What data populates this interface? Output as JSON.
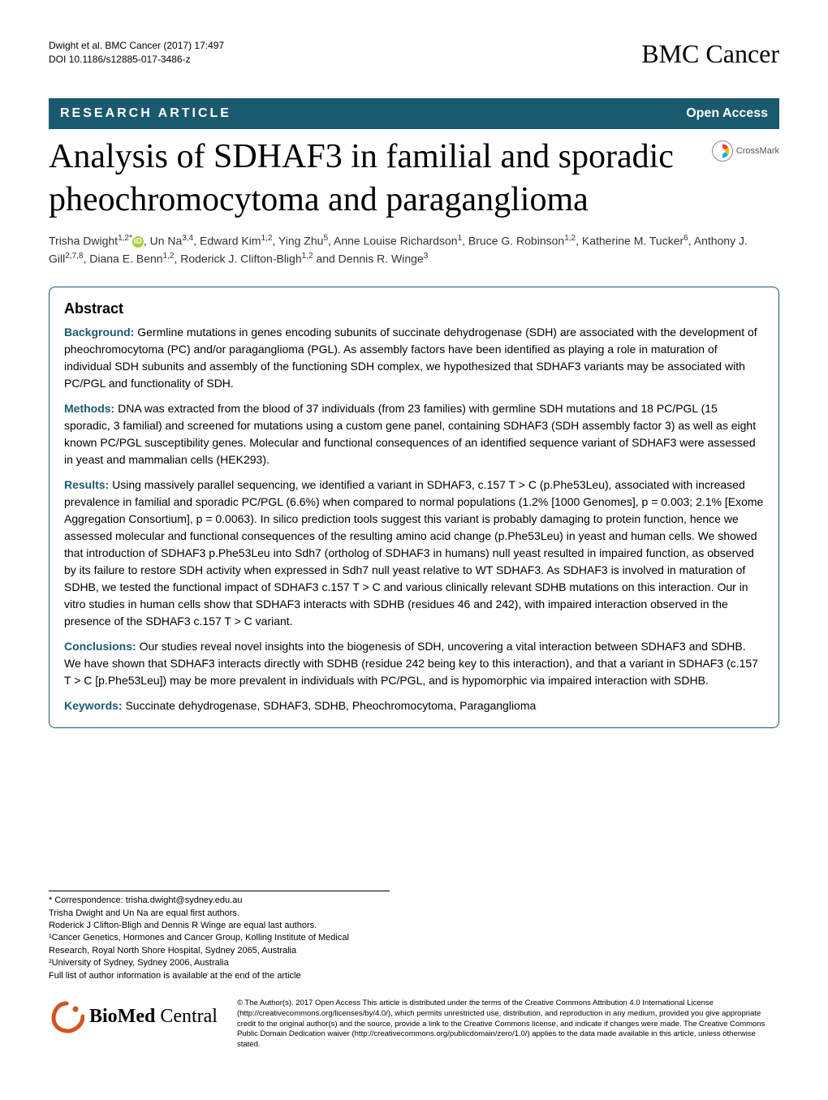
{
  "header": {
    "citation_line": "Dwight et al. BMC Cancer  (2017) 17:497",
    "doi_line": "DOI 10.1186/s12885-017-3486-z",
    "journal_brand": "BMC Cancer"
  },
  "article_type_bar": {
    "left": "RESEARCH ARTICLE",
    "right": "Open Access",
    "bg_color": "#1a5a6e",
    "text_color": "#ffffff"
  },
  "title": "Analysis of SDHAF3 in familial and sporadic pheochromocytoma and paraganglioma",
  "crossmark": {
    "label": "CrossMark",
    "colors": [
      "#ef3e42",
      "#fdb913",
      "#00aeef"
    ]
  },
  "authors_html": "Trisha Dwight<sup>1,2*</sup><span class=\"orcid\" data-name=\"orcid-icon\" data-interactable=\"false\">iD</span>, Un Na<sup>3,4</sup>, Edward Kim<sup>1,2</sup>, Ying Zhu<sup>5</sup>, Anne Louise Richardson<sup>1</sup>, Bruce G. Robinson<sup>1,2</sup>, Katherine M. Tucker<sup>6</sup>, Anthony J. Gill<sup>2,7,8</sup>, Diana E. Benn<sup>1,2</sup>, Roderick J. Clifton-Bligh<sup>1,2</sup> and Dennis R. Winge<sup>3</sup>",
  "abstract": {
    "heading": "Abstract",
    "sections": [
      {
        "label": "Background:",
        "text": "Germline mutations in genes encoding subunits of succinate dehydrogenase (SDH) are associated with the development of pheochromocytoma (PC) and/or paraganglioma (PGL). As assembly factors have been identified as playing a role in maturation of individual SDH subunits and assembly of the functioning SDH complex, we hypothesized that SDHAF3 variants may be associated with PC/PGL and functionality of SDH."
      },
      {
        "label": "Methods:",
        "text": "DNA was extracted from the blood of 37 individuals (from 23 families) with germline SDH mutations and 18 PC/PGL (15 sporadic, 3 familial) and screened for mutations using a custom gene panel, containing SDHAF3 (SDH assembly factor 3) as well as eight known PC/PGL susceptibility genes. Molecular and functional consequences of an identified sequence variant of SDHAF3 were assessed in yeast and mammalian cells (HEK293)."
      },
      {
        "label": "Results:",
        "text": "Using massively parallel sequencing, we identified a variant in SDHAF3, c.157 T > C (p.Phe53Leu), associated with increased prevalence in familial and sporadic PC/PGL (6.6%) when compared to normal populations (1.2% [1000 Genomes], p = 0.003; 2.1% [Exome Aggregation Consortium], p = 0.0063). In silico prediction tools suggest this variant is probably damaging to protein function, hence we assessed molecular and functional consequences of the resulting amino acid change (p.Phe53Leu) in yeast and human cells. We showed that introduction of SDHAF3 p.Phe53Leu into Sdh7 (ortholog of SDHAF3 in humans) null yeast resulted in impaired function, as observed by its failure to restore SDH activity when expressed in Sdh7 null yeast relative to WT SDHAF3. As SDHAF3 is involved in maturation of SDHB, we tested the functional impact of SDHAF3 c.157 T > C and various clinically relevant SDHB mutations on this interaction. Our in vitro studies in human cells show that SDHAF3 interacts with SDHB (residues 46 and 242), with impaired interaction observed in the presence of the SDHAF3 c.157 T > C variant."
      },
      {
        "label": "Conclusions:",
        "text": "Our studies reveal novel insights into the biogenesis of SDH, uncovering a vital interaction between SDHAF3 and SDHB. We have shown that SDHAF3 interacts directly with SDHB (residue 242 being key to this interaction), and that a variant in SDHAF3 (c.157 T > C [p.Phe53Leu]) may be more prevalent in individuals with PC/PGL, and is hypomorphic via impaired interaction with SDHB."
      },
      {
        "label": "Keywords:",
        "text": "Succinate dehydrogenase, SDHAF3, SDHB, Pheochromocytoma, Paraganglioma"
      }
    ]
  },
  "footer_notes": [
    "* Correspondence: trisha.dwight@sydney.edu.au",
    "Trisha Dwight and Un Na are equal first authors.",
    "Roderick J Clifton-Bligh and Dennis R Winge are equal last authors.",
    "¹Cancer Genetics, Hormones and Cancer Group, Kolling Institute of Medical Research, Royal North Shore Hospital, Sydney 2065, Australia",
    "²University of Sydney, Sydney 2006, Australia",
    "Full list of author information is available at the end of the article"
  ],
  "publisher": {
    "logo_text_bold": "BioMed",
    "logo_text_rest": " Central",
    "logo_color": "#d4531f"
  },
  "license": "© The Author(s). 2017 Open Access This article is distributed under the terms of the Creative Commons Attribution 4.0 International License (http://creativecommons.org/licenses/by/4.0/), which permits unrestricted use, distribution, and reproduction in any medium, provided you give appropriate credit to the original author(s) and the source, provide a link to the Creative Commons license, and indicate if changes were made. The Creative Commons Public Domain Dedication waiver (http://creativecommons.org/publicdomain/zero/1.0/) applies to the data made available in this article, unless otherwise stated.",
  "colors": {
    "accent": "#1a5a6e",
    "orcid_green": "#a6ce39",
    "bmc_orange": "#d4531f"
  },
  "typography": {
    "title_fontsize_pt": 32,
    "body_fontsize_pt": 10.5,
    "journal_brand_fontsize_pt": 24
  }
}
